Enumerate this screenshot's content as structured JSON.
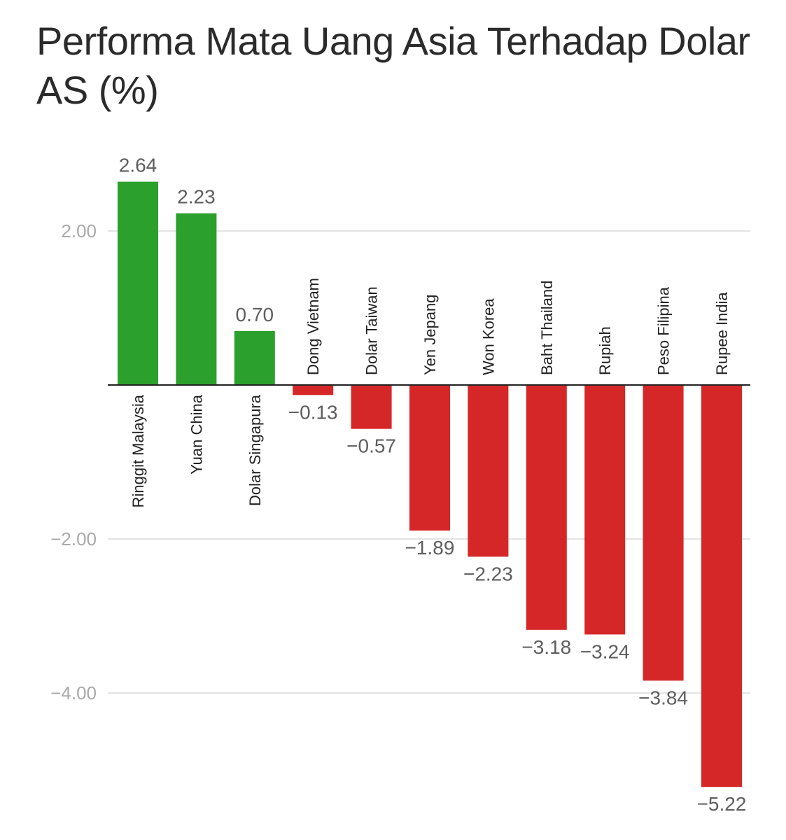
{
  "chart_data": {
    "type": "bar",
    "title": "Performa Mata Uang Asia Terhadap Dolar AS (%)",
    "xlabel": "",
    "ylabel": "",
    "categories": [
      "Ringgit Malaysia",
      "Yuan China",
      "Dolar Singapura",
      "Dong Vietnam",
      "Dolar Taiwan",
      "Yen Jepang",
      "Won Korea",
      "Baht Thailand",
      "Rupiah",
      "Peso Filipina",
      "Rupee India"
    ],
    "values": [
      2.64,
      2.23,
      0.7,
      -0.13,
      -0.57,
      -1.89,
      -2.23,
      -3.18,
      -3.24,
      -3.84,
      -5.22
    ],
    "value_labels": [
      "2.64",
      "2.23",
      "0.70",
      "−0.13",
      "−0.57",
      "−1.89",
      "−2.23",
      "−3.18",
      "−3.24",
      "−3.84",
      "−5.22"
    ],
    "y_ticks": [
      2,
      -2,
      -4
    ],
    "y_tick_labels": [
      "2.00",
      "−2.00",
      "−4.00"
    ],
    "ylim": [
      -5.5,
      3.0
    ],
    "grid": true,
    "legend": "none",
    "colors": {
      "positive": "#2ca02c",
      "negative": "#d62728",
      "gridline": "#e4e4e4",
      "baseline": "#222222"
    }
  }
}
